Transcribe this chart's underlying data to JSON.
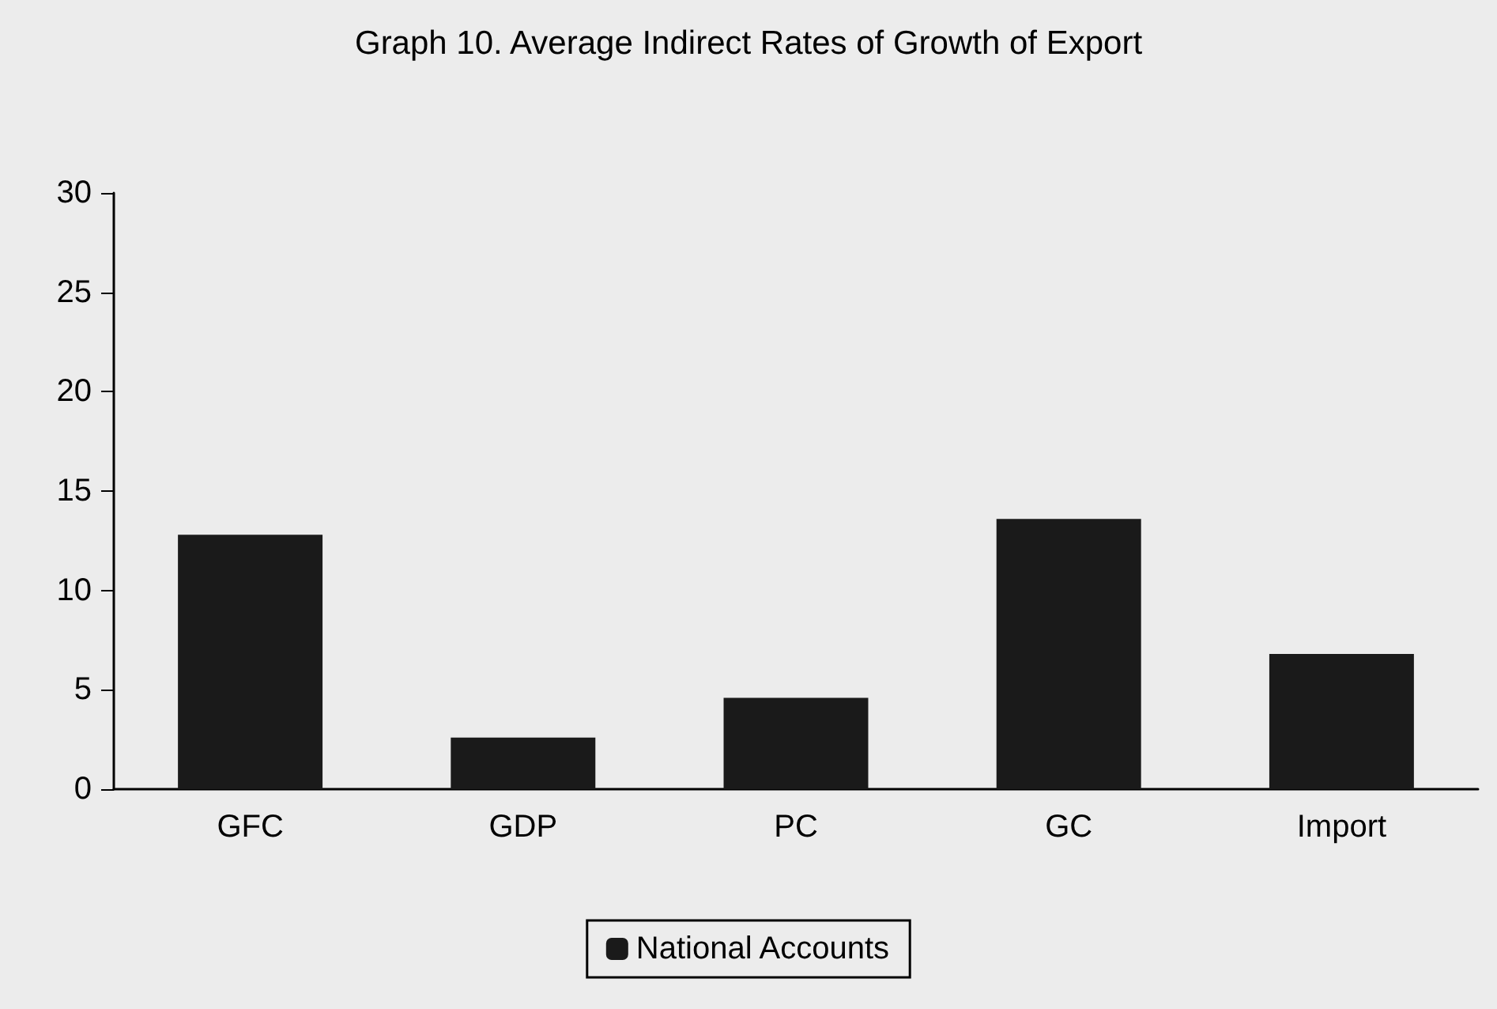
{
  "chart_data": {
    "type": "bar",
    "title": "Graph 10. Average Indirect Rates of Growth of Export",
    "categories": [
      "GFC",
      "GDP",
      "PC",
      "GC",
      "Import"
    ],
    "series": [
      {
        "name": "National Accounts",
        "color": "#1a1a1a",
        "values": [
          12.8,
          2.6,
          4.6,
          13.6,
          6.8
        ]
      }
    ],
    "ylim": [
      0,
      30
    ],
    "yticks": [
      0,
      5,
      10,
      15,
      20,
      25,
      30
    ],
    "grid": false,
    "legend": "bottom"
  }
}
